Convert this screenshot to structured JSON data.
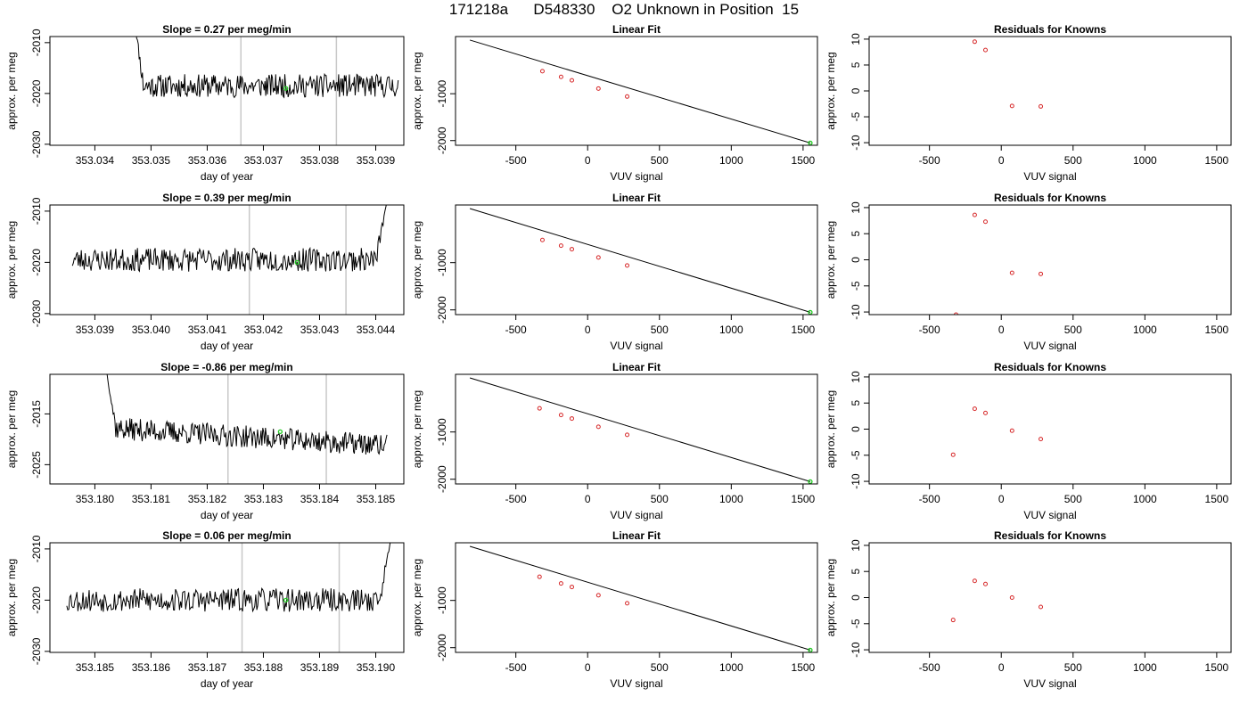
{
  "page_title": "171218a      D548330    O2 Unknown in Position  15",
  "colors": {
    "trace": "#000000",
    "known_point": "#d62728",
    "unknown_point": "#22cc22",
    "marker_line": "#c8c8c8"
  },
  "chart_data": [
    {
      "type": "line",
      "title": "Slope =  0.27  per meg/min",
      "xlabel": "day of year",
      "ylabel": "approx. per meg",
      "xlim": [
        353.0332,
        353.0395
      ],
      "ylim": [
        -2030.2,
        -2008.8
      ],
      "x_ticks": [
        "353.034",
        "353.035",
        "353.036",
        "353.037",
        "353.038",
        "353.039"
      ],
      "x_tick_values": [
        353.034,
        353.035,
        353.036,
        353.037,
        353.038,
        353.039
      ],
      "y_ticks": [
        "-2010",
        "-2020",
        "-2030"
      ],
      "y_tick_values": [
        -2010,
        -2020,
        -2030
      ],
      "vlines": [
        353.0366,
        353.0383
      ],
      "trace": {
        "x_start": 353.0347,
        "x_end": 353.0394,
        "mean": -2018.5,
        "noise": 2.3,
        "start_value": -2005,
        "spike": "start",
        "seed": 11
      },
      "unknown_point": {
        "x": 353.0374,
        "y": -2019
      }
    },
    {
      "type": "scatter",
      "title": "Linear Fit",
      "xlabel": "VUV signal",
      "ylabel": "approx. per meg",
      "xlim": [
        -920,
        1600
      ],
      "ylim": [
        -2100,
        220
      ],
      "x_ticks": [
        "-500",
        "0",
        "500",
        "1000",
        "1500"
      ],
      "x_tick_values": [
        -500,
        0,
        500,
        1000,
        1500
      ],
      "y_ticks": [
        "-1000",
        "-2000"
      ],
      "y_tick_values": [
        -1000,
        -2000
      ],
      "fit_line": {
        "x": [
          -820,
          1550
        ],
        "y": [
          145,
          -2050
        ]
      },
      "known_points": {
        "x": [
          -315,
          -185,
          -110,
          75,
          275
        ],
        "y": [
          -520,
          -640,
          -715,
          -890,
          -1060
        ]
      },
      "unknown_point": {
        "x": 1550,
        "y": -2050
      }
    },
    {
      "type": "scatter",
      "title": "Residuals for Knowns",
      "xlabel": "VUV signal",
      "ylabel": "approx. per meg",
      "xlim": [
        -920,
        1600
      ],
      "ylim": [
        -10.5,
        10.5
      ],
      "x_ticks": [
        "-500",
        "0",
        "500",
        "1000",
        "1500"
      ],
      "x_tick_values": [
        -500,
        0,
        500,
        1000,
        1500
      ],
      "y_ticks": [
        "10",
        "5",
        "0",
        "-5",
        "-10"
      ],
      "y_tick_values": [
        10,
        5,
        0,
        -5,
        -10
      ],
      "known_points": {
        "x": [
          -185,
          -110,
          75,
          275
        ],
        "y": [
          9.5,
          7.9,
          -2.9,
          -3
        ]
      }
    },
    {
      "type": "line",
      "title": "Slope =  0.39  per meg/min",
      "xlabel": "day of year",
      "ylabel": "approx. per meg",
      "xlim": [
        353.0382,
        353.0445
      ],
      "ylim": [
        -2030.2,
        -2008.8
      ],
      "x_ticks": [
        "353.039",
        "353.040",
        "353.041",
        "353.042",
        "353.043",
        "353.044"
      ],
      "x_tick_values": [
        353.039,
        353.04,
        353.041,
        353.042,
        353.043,
        353.044
      ],
      "y_ticks": [
        "-2010",
        "-2020",
        "-2030"
      ],
      "y_tick_values": [
        -2010,
        -2020,
        -2030
      ],
      "vlines": [
        353.04175,
        353.04347
      ],
      "trace": {
        "x_start": 353.0386,
        "x_end": 353.0442,
        "mean": -2019.5,
        "noise": 2.3,
        "end_value": -2008,
        "spike": "end",
        "seed": 23
      },
      "unknown_point": {
        "x": 353.0426,
        "y": -2020
      }
    },
    {
      "type": "scatter",
      "title": "Linear Fit",
      "xlabel": "VUV signal",
      "ylabel": "approx. per meg",
      "xlim": [
        -920,
        1600
      ],
      "ylim": [
        -2100,
        220
      ],
      "x_ticks": [
        "-500",
        "0",
        "500",
        "1000",
        "1500"
      ],
      "x_tick_values": [
        -500,
        0,
        500,
        1000,
        1500
      ],
      "y_ticks": [
        "-1000",
        "-2000"
      ],
      "y_tick_values": [
        -1000,
        -2000
      ],
      "fit_line": {
        "x": [
          -820,
          1550
        ],
        "y": [
          145,
          -2050
        ]
      },
      "known_points": {
        "x": [
          -315,
          -185,
          -110,
          75,
          275
        ],
        "y": [
          -520,
          -640,
          -715,
          -890,
          -1060
        ]
      },
      "unknown_point": {
        "x": 1550,
        "y": -2050
      }
    },
    {
      "type": "scatter",
      "title": "Residuals for Knowns",
      "xlabel": "VUV signal",
      "ylabel": "approx. per meg",
      "xlim": [
        -920,
        1600
      ],
      "ylim": [
        -10.5,
        10.5
      ],
      "x_ticks": [
        "-500",
        "0",
        "500",
        "1000",
        "1500"
      ],
      "x_tick_values": [
        -500,
        0,
        500,
        1000,
        1500
      ],
      "y_ticks": [
        "10",
        "5",
        "0",
        "-5",
        "-10"
      ],
      "y_tick_values": [
        10,
        5,
        0,
        -5,
        -10
      ],
      "known_points": {
        "x": [
          -315,
          -185,
          -110,
          75,
          275
        ],
        "y": [
          -10.5,
          8.6,
          7.3,
          -2.5,
          -2.7
        ]
      }
    },
    {
      "type": "line",
      "title": "Slope =  -0.86  per meg/min",
      "xlabel": "day of year",
      "ylabel": "approx. per meg",
      "xlim": [
        353.1792,
        353.1855
      ],
      "ylim": [
        -2028.8,
        -2007.2
      ],
      "x_ticks": [
        "353.180",
        "353.181",
        "353.182",
        "353.183",
        "353.184",
        "353.185"
      ],
      "x_tick_values": [
        353.18,
        353.181,
        353.182,
        353.183,
        353.184,
        353.185
      ],
      "y_ticks": [
        "-2015",
        "-2025"
      ],
      "y_tick_values": [
        -2015,
        -2025
      ],
      "vlines": [
        353.18237,
        353.18412
      ],
      "trace": {
        "x_start": 353.1802,
        "x_end": 353.1852,
        "mean": -2019.5,
        "noise": 2.2,
        "start_value": -2006,
        "spike": "start",
        "drift": -3.5,
        "seed": 37
      },
      "unknown_point": {
        "x": 353.1833,
        "y": -2018.5
      }
    },
    {
      "type": "scatter",
      "title": "Linear Fit",
      "xlabel": "VUV signal",
      "ylabel": "approx. per meg",
      "xlim": [
        -920,
        1600
      ],
      "ylim": [
        -2100,
        220
      ],
      "x_ticks": [
        "-500",
        "0",
        "500",
        "1000",
        "1500"
      ],
      "x_tick_values": [
        -500,
        0,
        500,
        1000,
        1500
      ],
      "y_ticks": [
        "-1000",
        "-2000"
      ],
      "y_tick_values": [
        -1000,
        -2000
      ],
      "fit_line": {
        "x": [
          -820,
          1550
        ],
        "y": [
          145,
          -2050
        ]
      },
      "known_points": {
        "x": [
          -335,
          -185,
          -110,
          75,
          275
        ],
        "y": [
          -500,
          -640,
          -715,
          -890,
          -1060
        ]
      },
      "unknown_point": {
        "x": 1550,
        "y": -2050
      }
    },
    {
      "type": "scatter",
      "title": "Residuals for Knowns",
      "xlabel": "VUV signal",
      "ylabel": "approx. per meg",
      "xlim": [
        -920,
        1600
      ],
      "ylim": [
        -10.5,
        10.5
      ],
      "x_ticks": [
        "-500",
        "0",
        "500",
        "1000",
        "1500"
      ],
      "x_tick_values": [
        -500,
        0,
        500,
        1000,
        1500
      ],
      "y_ticks": [
        "10",
        "5",
        "0",
        "-5",
        "-10"
      ],
      "y_tick_values": [
        10,
        5,
        0,
        -5,
        -10
      ],
      "known_points": {
        "x": [
          -335,
          -185,
          -110,
          75,
          275
        ],
        "y": [
          -4.9,
          3.9,
          3.1,
          -0.3,
          -1.9
        ]
      }
    },
    {
      "type": "line",
      "title": "Slope =  0.06  per meg/min",
      "xlabel": "day of year",
      "ylabel": "approx. per meg",
      "xlim": [
        353.1842,
        353.1905
      ],
      "ylim": [
        -2030.2,
        -2008.8
      ],
      "x_ticks": [
        "353.185",
        "353.186",
        "353.187",
        "353.188",
        "353.189",
        "353.190"
      ],
      "x_tick_values": [
        353.185,
        353.186,
        353.187,
        353.188,
        353.189,
        353.19
      ],
      "y_ticks": [
        "-2010",
        "-2020",
        "-2030"
      ],
      "y_tick_values": [
        -2010,
        -2020,
        -2030
      ],
      "vlines": [
        353.18762,
        353.18935
      ],
      "trace": {
        "x_start": 353.1845,
        "x_end": 353.19027,
        "mean": -2020,
        "noise": 2.3,
        "end_value": -2008,
        "spike": "end",
        "seed": 53
      },
      "unknown_point": {
        "x": 353.1884,
        "y": -2020
      }
    },
    {
      "type": "scatter",
      "title": "Linear Fit",
      "xlabel": "VUV signal",
      "ylabel": "approx. per meg",
      "xlim": [
        -920,
        1600
      ],
      "ylim": [
        -2100,
        220
      ],
      "x_ticks": [
        "-500",
        "0",
        "500",
        "1000",
        "1500"
      ],
      "x_tick_values": [
        -500,
        0,
        500,
        1000,
        1500
      ],
      "y_ticks": [
        "-1000",
        "-2000"
      ],
      "y_tick_values": [
        -1000,
        -2000
      ],
      "fit_line": {
        "x": [
          -820,
          1550
        ],
        "y": [
          145,
          -2050
        ]
      },
      "known_points": {
        "x": [
          -335,
          -185,
          -110,
          75,
          275
        ],
        "y": [
          -500,
          -640,
          -715,
          -890,
          -1060
        ]
      },
      "unknown_point": {
        "x": 1550,
        "y": -2050
      }
    },
    {
      "type": "scatter",
      "title": "Residuals for Knowns",
      "xlabel": "VUV signal",
      "ylabel": "approx. per meg",
      "xlim": [
        -920,
        1600
      ],
      "ylim": [
        -10.5,
        10.5
      ],
      "x_ticks": [
        "-500",
        "0",
        "500",
        "1000",
        "1500"
      ],
      "x_tick_values": [
        -500,
        0,
        500,
        1000,
        1500
      ],
      "y_ticks": [
        "10",
        "5",
        "0",
        "-5",
        "-10"
      ],
      "y_tick_values": [
        10,
        5,
        0,
        -5,
        -10
      ],
      "known_points": {
        "x": [
          -335,
          -185,
          -110,
          75,
          275
        ],
        "y": [
          -4.3,
          3.2,
          2.6,
          0.0,
          -1.8
        ]
      }
    }
  ]
}
